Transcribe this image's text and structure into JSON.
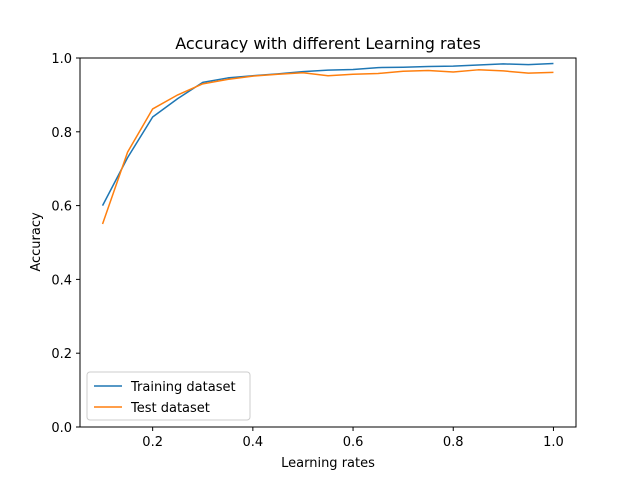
{
  "chart_data": {
    "type": "line",
    "title": "Accuracy with different Learning rates",
    "xlabel": "Learning rates",
    "ylabel": "Accuracy",
    "xlim": [
      0.055,
      1.045
    ],
    "ylim": [
      0.0,
      1.0
    ],
    "xticks": [
      0.2,
      0.4,
      0.6,
      0.8,
      1.0
    ],
    "xtick_labels": [
      "0.2",
      "0.4",
      "0.6",
      "0.8",
      "1.0"
    ],
    "yticks": [
      0.0,
      0.2,
      0.4,
      0.6,
      0.8,
      1.0
    ],
    "ytick_labels": [
      "0.0",
      "0.2",
      "0.4",
      "0.6",
      "0.8",
      "1.0"
    ],
    "grid": false,
    "legend_position": "lower-left",
    "x": [
      0.1,
      0.15,
      0.2,
      0.25,
      0.3,
      0.35,
      0.4,
      0.45,
      0.5,
      0.55,
      0.6,
      0.65,
      0.7,
      0.75,
      0.8,
      0.85,
      0.9,
      0.95,
      1.0
    ],
    "series": [
      {
        "name": "Training dataset",
        "color": "#1f77b4",
        "values": [
          0.6,
          0.73,
          0.84,
          0.89,
          0.934,
          0.946,
          0.952,
          0.957,
          0.963,
          0.967,
          0.969,
          0.974,
          0.975,
          0.977,
          0.978,
          0.981,
          0.984,
          0.982,
          0.985
        ]
      },
      {
        "name": "Test dataset",
        "color": "#ff7f0e",
        "values": [
          0.55,
          0.745,
          0.862,
          0.9,
          0.93,
          0.942,
          0.951,
          0.956,
          0.96,
          0.952,
          0.956,
          0.958,
          0.964,
          0.966,
          0.962,
          0.968,
          0.965,
          0.959,
          0.961
        ]
      }
    ]
  }
}
